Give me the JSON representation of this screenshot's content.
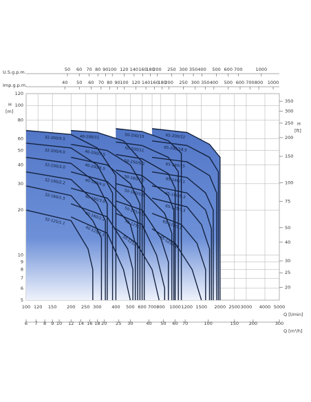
{
  "chart_data": {
    "type": "pump-curves",
    "log_scale": true,
    "grid": true,
    "color": "#4f73c4",
    "line_color": "#14223f",
    "xlabel": "Q [l/min]",
    "xlim": [
      100,
      5000
    ],
    "xticks": [
      100,
      120,
      150,
      200,
      250,
      300,
      400,
      500,
      600,
      700,
      800,
      1000,
      1200,
      1500,
      2000,
      2500,
      3000,
      4000,
      5000
    ],
    "x_axes": [
      {
        "position": "bottom",
        "label": "Q [m³/h]",
        "lim": [
          6,
          300
        ],
        "ticks": [
          6,
          7,
          8,
          9,
          10,
          12,
          14,
          16,
          18,
          20,
          25,
          30,
          40,
          50,
          60,
          70,
          100,
          150,
          200,
          300
        ]
      },
      {
        "position": "top",
        "label": "U.S.g.p.m.",
        "lim": [
          26.42,
          1321
        ],
        "ticks": [
          50,
          60,
          70,
          80,
          90,
          100,
          120,
          140,
          160,
          180,
          200,
          250,
          300,
          350,
          400,
          500,
          600,
          700,
          1000
        ]
      },
      {
        "position": "top",
        "label": "Imp.g.p.m.",
        "lim": [
          22,
          1100
        ],
        "ticks": [
          40,
          50,
          60,
          70,
          80,
          90,
          100,
          120,
          140,
          160,
          180,
          200,
          250,
          300,
          350,
          400,
          500,
          600,
          700,
          800,
          1000
        ]
      }
    ],
    "ylabel": {
      "name": "H",
      "unit": "[m]"
    },
    "ylim": [
      5,
      120
    ],
    "yticks": [
      5,
      6,
      7,
      8,
      9,
      10,
      20,
      30,
      40,
      50,
      60,
      80,
      100,
      120
    ],
    "y2label": {
      "name": "H",
      "unit": "[ft]"
    },
    "y2lim": [
      16.4,
      393.7
    ],
    "y2ticks": [
      20,
      25,
      30,
      40,
      50,
      75,
      100,
      150,
      200,
      250,
      300,
      350
    ],
    "series": [
      {
        "name": "32-200/5.5",
        "x": [
          100,
          200,
          300,
          400
        ],
        "values": [
          68,
          64,
          52,
          34
        ]
      },
      {
        "name": "32-200/4.0",
        "x": [
          100,
          200,
          300,
          380
        ],
        "values": [
          56,
          52,
          40,
          26
        ]
      },
      {
        "name": "32-200/3.0",
        "x": [
          100,
          200,
          300,
          350
        ],
        "values": [
          45,
          41,
          30,
          22
        ]
      },
      {
        "name": "32-160/2.2",
        "x": [
          100,
          200,
          300,
          340
        ],
        "values": [
          36,
          32,
          22,
          17
        ]
      },
      {
        "name": "32-160/1.5",
        "x": [
          100,
          200,
          280,
          320
        ],
        "values": [
          29,
          25,
          17,
          13
        ]
      },
      {
        "name": "32-125/1.1",
        "x": [
          100,
          200,
          260,
          280
        ],
        "values": [
          20,
          17,
          11,
          8
        ]
      },
      {
        "name": "40-200/11",
        "x": [
          200,
          300,
          450,
          600
        ],
        "values": [
          68,
          66,
          58,
          42
        ]
      },
      {
        "name": "40-200/7.5",
        "x": [
          200,
          350,
          500,
          620
        ],
        "values": [
          55,
          50,
          40,
          28
        ]
      },
      {
        "name": "40-200/5.5",
        "x": [
          200,
          350,
          500,
          580
        ],
        "values": [
          45,
          40,
          30,
          22
        ]
      },
      {
        "name": "40-160/4.0",
        "x": [
          200,
          350,
          500,
          560
        ],
        "values": [
          36,
          31,
          22,
          17
        ]
      },
      {
        "name": "40-160/3.0",
        "x": [
          200,
          350,
          500,
          540
        ],
        "values": [
          28,
          24,
          16,
          12
        ]
      },
      {
        "name": "40-160/2.2",
        "x": [
          200,
          350,
          480,
          520
        ],
        "values": [
          22,
          18,
          11,
          8
        ]
      },
      {
        "name": "40-125/1.5",
        "x": [
          200,
          350,
          450,
          500
        ],
        "values": [
          18,
          14,
          8,
          5
        ]
      },
      {
        "name": "50-200/15",
        "x": [
          400,
          600,
          900,
          1100
        ],
        "values": [
          70,
          67,
          58,
          48
        ]
      },
      {
        "name": "50-200/11",
        "x": [
          400,
          600,
          900,
          1050
        ],
        "values": [
          57,
          54,
          45,
          36
        ]
      },
      {
        "name": "50-250/9.2",
        "x": [
          400,
          600,
          900,
          1000
        ],
        "values": [
          47,
          44,
          35,
          28
        ]
      },
      {
        "name": "50-160/7.5",
        "x": [
          400,
          600,
          900,
          980
        ],
        "values": [
          37,
          34,
          25,
          20
        ]
      },
      {
        "name": "50-160/5.5",
        "x": [
          400,
          600,
          850,
          950
        ],
        "values": [
          30,
          27,
          19,
          14
        ]
      },
      {
        "name": "50-125/4.0",
        "x": [
          400,
          600,
          800,
          900
        ],
        "values": [
          23,
          20,
          13,
          9
        ]
      },
      {
        "name": "50-125/3.0",
        "x": [
          400,
          600,
          750,
          850
        ],
        "values": [
          19,
          16,
          10,
          6
        ]
      },
      {
        "name": "50-125/2.2",
        "x": [
          400,
          550,
          700,
          780
        ],
        "values": [
          15,
          12,
          8,
          5
        ]
      },
      {
        "name": "65-200/22",
        "x": [
          700,
          1200,
          1700,
          2000
        ],
        "values": [
          70,
          66,
          55,
          45
        ]
      },
      {
        "name": "65-200/18.5",
        "x": [
          700,
          1200,
          1700,
          1950
        ],
        "values": [
          58,
          54,
          45,
          36
        ]
      },
      {
        "name": "65-160/15",
        "x": [
          700,
          1200,
          1700,
          1900
        ],
        "values": [
          45,
          42,
          34,
          26
        ]
      },
      {
        "name": "65-160/11",
        "x": [
          700,
          1200,
          1600,
          1800
        ],
        "values": [
          36,
          33,
          26,
          20
        ]
      },
      {
        "name": "65-160/9.2",
        "x": [
          700,
          1200,
          1600,
          1750
        ],
        "values": [
          29,
          26,
          20,
          15
        ]
      },
      {
        "name": "65-125/7.5",
        "x": [
          700,
          1200,
          1500,
          1700
        ],
        "values": [
          24,
          21,
          16,
          11
        ]
      },
      {
        "name": "65-125/5.5",
        "x": [
          700,
          1100,
          1400,
          1600
        ],
        "values": [
          19,
          16,
          12,
          8
        ]
      },
      {
        "name": "65-125/4.0",
        "x": [
          700,
          1000,
          1300,
          1500
        ],
        "values": [
          15,
          12,
          8,
          5
        ]
      }
    ]
  }
}
